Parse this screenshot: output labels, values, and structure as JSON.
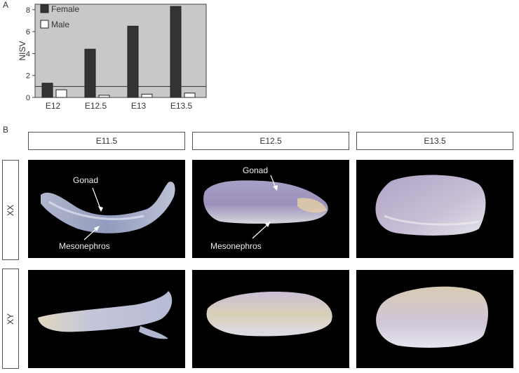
{
  "panel_a": {
    "letter": "A"
  },
  "panel_b": {
    "letter": "B"
  },
  "chart_data": {
    "type": "bar",
    "categories": [
      "E12",
      "E12.5",
      "E13",
      "E13.5"
    ],
    "series": [
      {
        "name": "Female",
        "values": [
          1.3,
          4.4,
          6.5,
          8.3
        ],
        "color": "#333333"
      },
      {
        "name": "Male",
        "values": [
          0.7,
          0.2,
          0.3,
          0.4
        ],
        "color": "#ffffff"
      }
    ],
    "ylabel": "NISV",
    "xlabel": "",
    "ylim": [
      0,
      8.5
    ],
    "yticks": [
      "0",
      "2",
      "4",
      "6",
      "8"
    ],
    "reference_line": 1,
    "legend": [
      "Female",
      "Male"
    ],
    "legend_position": "top-left",
    "background_color": "#c8c8c8"
  },
  "figure_b": {
    "columns": [
      "E11.5",
      "E12.5",
      "E13.5"
    ],
    "rows": [
      "XX",
      "XY"
    ],
    "annotations": {
      "xx_e115_gonad": "Gonad",
      "xx_e115_mesonephros": "Mesonephros",
      "xx_e125_gonad": "Gonad",
      "xx_e125_mesonephros": "Mesonephros"
    }
  }
}
